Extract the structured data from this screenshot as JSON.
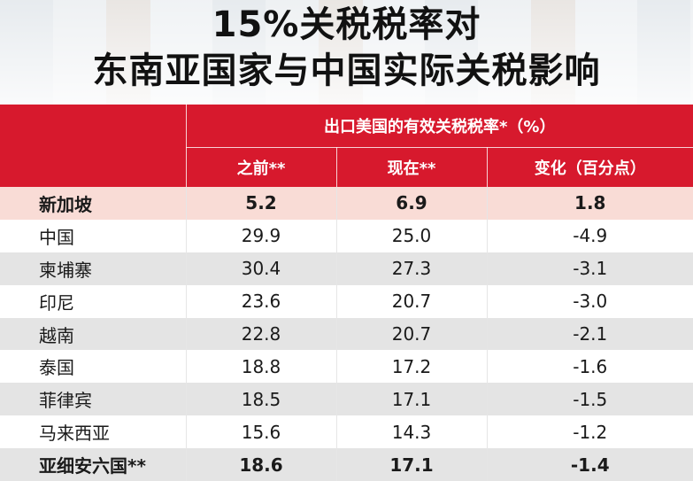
{
  "chart_data": {
    "type": "table",
    "title_lines": [
      "15%关税税率对",
      "东南亚国家与中国实际关税影响"
    ],
    "group_header": "出口美国的有效关税税率*（%）",
    "columns": [
      "之前**",
      "现在**",
      "变化（百分点）"
    ],
    "rows": [
      {
        "name": "新加坡",
        "before": "5.2",
        "now": "6.9",
        "change": "1.8"
      },
      {
        "name": "中国",
        "before": "29.9",
        "now": "25.0",
        "change": "-4.9"
      },
      {
        "name": "柬埔寨",
        "before": "30.4",
        "now": "27.3",
        "change": "-3.1"
      },
      {
        "name": "印尼",
        "before": "23.6",
        "now": "20.7",
        "change": "-3.0"
      },
      {
        "name": "越南",
        "before": "22.8",
        "now": "20.7",
        "change": "-2.1"
      },
      {
        "name": "泰国",
        "before": "18.8",
        "now": "17.2",
        "change": "-1.6"
      },
      {
        "name": "菲律宾",
        "before": "18.5",
        "now": "17.1",
        "change": "-1.5"
      },
      {
        "name": "马来西亚",
        "before": "15.6",
        "now": "14.3",
        "change": "-1.2"
      },
      {
        "name": "亚细安六国**",
        "before": "18.6",
        "now": "17.1",
        "change": "-1.4"
      }
    ],
    "colors": {
      "header": "#d7192d",
      "highlight_row": "#f9dcd6",
      "stripe": "#e4e4e4"
    }
  }
}
